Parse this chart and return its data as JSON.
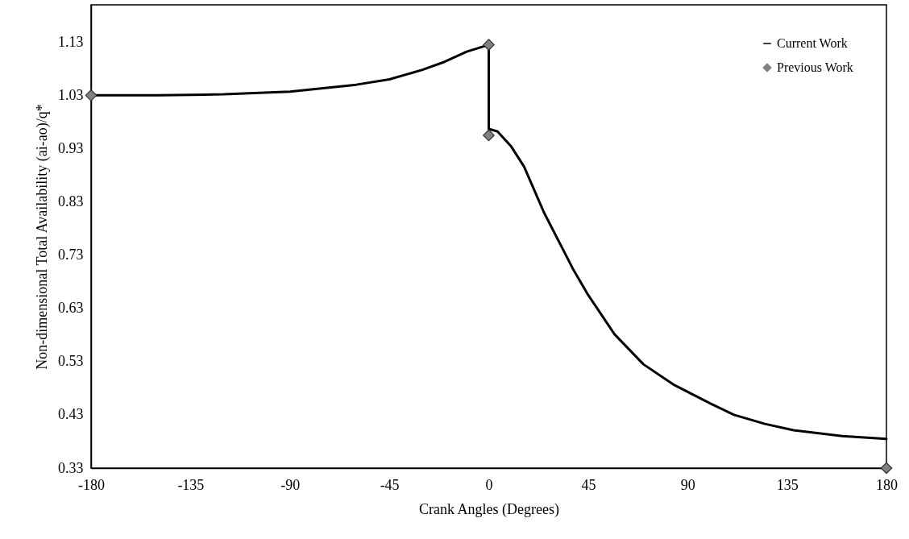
{
  "chart_data": {
    "type": "line",
    "xlabel": "Crank Angles (Degrees)",
    "ylabel": "Non-dimensional Total Availability (ai-ao)/q*",
    "xlim": [
      -180,
      180
    ],
    "xticks": [
      -180,
      -135,
      -90,
      -45,
      0,
      45,
      90,
      135,
      180
    ],
    "ylim": [
      0.33,
      1.2
    ],
    "yticks": [
      0.33,
      0.43,
      0.53,
      0.63,
      0.73,
      0.83,
      0.93,
      1.03,
      1.13
    ],
    "grid": false,
    "legend": "top right",
    "series": [
      {
        "name": "Current Work",
        "color": "#000000",
        "x": [
          -180,
          -150,
          -120,
          -90,
          -60,
          -45,
          -30,
          -20,
          -10,
          0,
          0,
          4,
          10,
          16,
          25,
          38,
          45,
          57,
          70,
          84,
          100,
          111,
          125,
          138,
          160,
          180
        ],
        "values": [
          1.03,
          1.03,
          1.032,
          1.037,
          1.05,
          1.06,
          1.078,
          1.093,
          1.112,
          1.125,
          0.967,
          0.962,
          0.935,
          0.896,
          0.81,
          0.705,
          0.655,
          0.581,
          0.525,
          0.486,
          0.452,
          0.43,
          0.413,
          0.401,
          0.39,
          0.385
        ]
      },
      {
        "name": "Previous Work",
        "type": "scatter",
        "color": "#808080",
        "marker": "diamond",
        "x": [
          -180,
          0,
          0,
          180
        ],
        "values": [
          1.03,
          1.125,
          0.955,
          0.33
        ]
      }
    ]
  }
}
